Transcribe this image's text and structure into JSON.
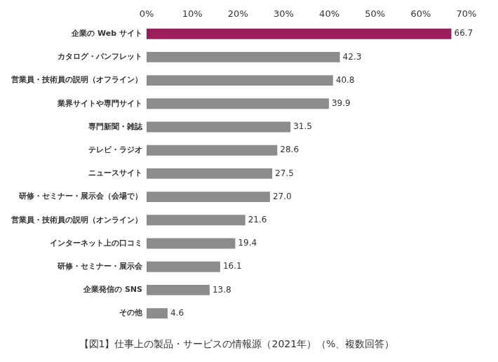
{
  "chart_data": {
    "type": "bar",
    "orientation": "horizontal",
    "title": "【図1】仕事上の製品・サービスの情報源（2021年）（%、複数回答）",
    "categories": [
      "企業の Web サイト",
      "カタログ・パンフレット",
      "営業員・技術員の説明（オフライン）",
      "業界サイトや専門サイト",
      "専門新聞・雑誌",
      "テレビ・ラジオ",
      "ニュースサイト",
      "研修・セミナー・展示会（会場で）",
      "営業員・技術員の説明（オンライン）",
      "インターネット上の口コミ",
      "研修・セミナー・展示会",
      "企業発信の SNS",
      "その他"
    ],
    "values": [
      66.7,
      42.3,
      40.8,
      39.9,
      31.5,
      28.6,
      27.5,
      27.0,
      21.6,
      19.4,
      16.1,
      13.8,
      4.6
    ],
    "value_labels": [
      "66.7",
      "42.3",
      "40.8",
      "39.9",
      "31.5",
      "28.6",
      "27.5",
      "27.0",
      "21.6",
      "19.4",
      "16.1",
      "13.8",
      "4.6"
    ],
    "colors": [
      "#9c1c5c",
      "#8c8c8c",
      "#8c8c8c",
      "#8c8c8c",
      "#8c8c8c",
      "#8c8c8c",
      "#8c8c8c",
      "#8c8c8c",
      "#8c8c8c",
      "#8c8c8c",
      "#8c8c8c",
      "#8c8c8c",
      "#8c8c8c"
    ],
    "xlim": [
      0,
      70
    ],
    "xticks": [
      {
        "value": 0,
        "label": "0%"
      },
      {
        "value": 10,
        "label": "10%"
      },
      {
        "value": 20,
        "label": "20%"
      },
      {
        "value": 30,
        "label": "30%"
      },
      {
        "value": 40,
        "label": "40%"
      },
      {
        "value": 50,
        "label": "50%"
      },
      {
        "value": 60,
        "label": "60%"
      },
      {
        "value": 70,
        "label": "70%"
      }
    ],
    "grid": false,
    "data_labels": true
  }
}
